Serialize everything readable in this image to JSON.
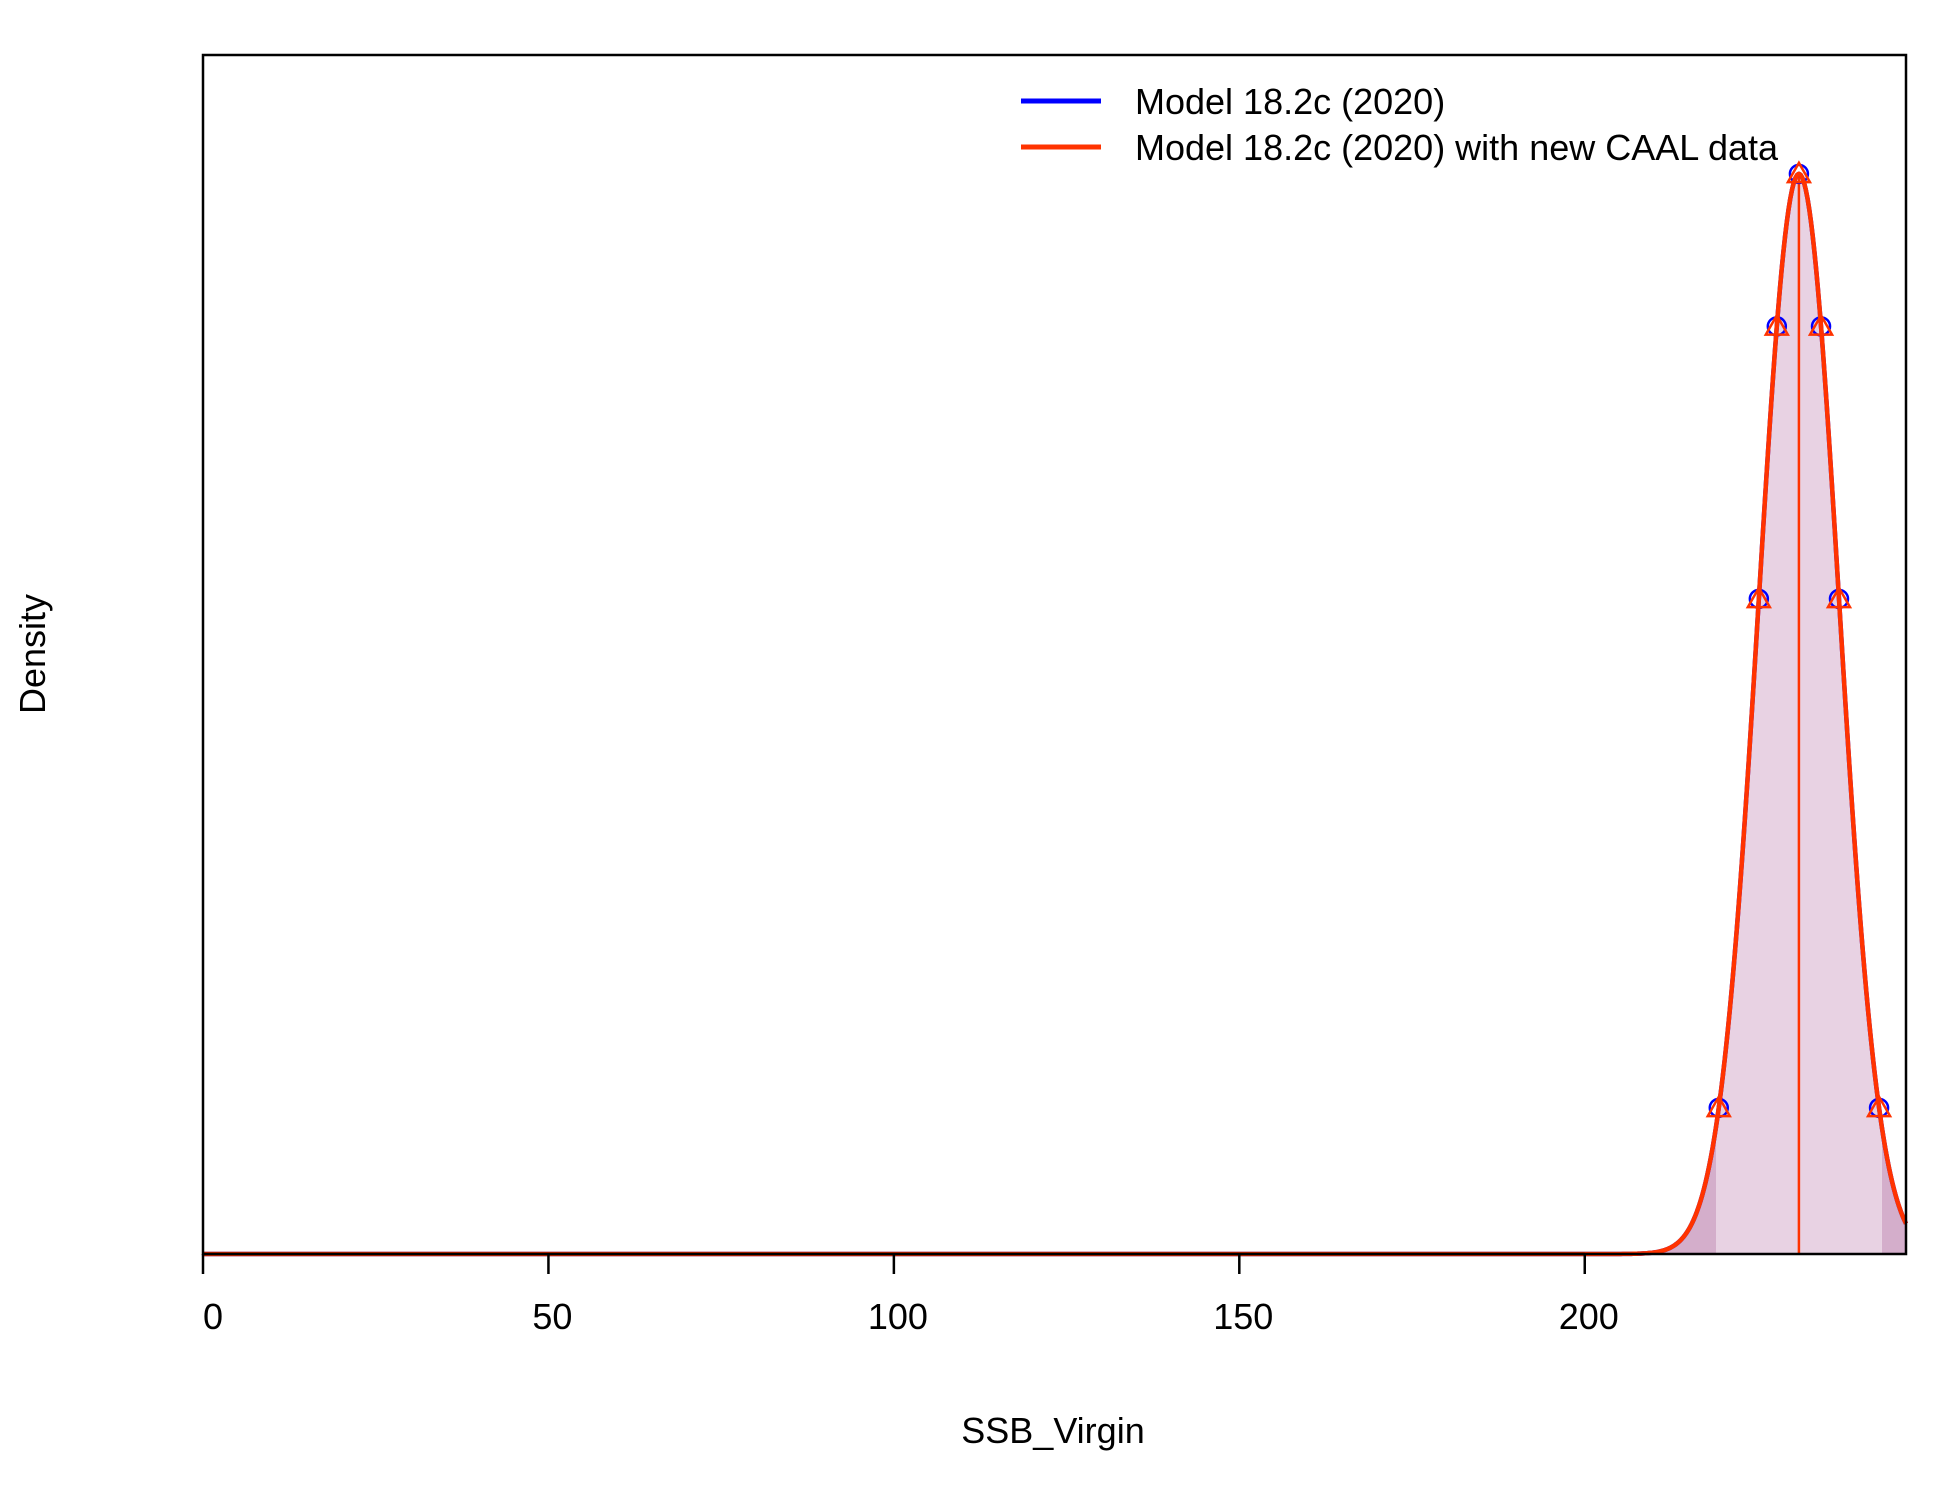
{
  "chart_data": {
    "type": "line",
    "title": "",
    "xlabel": "SSB_Virgin",
    "ylabel": "Density",
    "xlim": [
      0,
      246.5
    ],
    "ylim": [
      0,
      1.11
    ],
    "x_ticks": [
      0,
      50,
      100,
      150,
      200
    ],
    "x_tick_labels": [
      "0",
      "50",
      "100",
      "150",
      "200"
    ],
    "y_tick_labels_shown": false,
    "grid": false,
    "legend_position": "top-right",
    "series": [
      {
        "name": "Model 18.2c (2020)",
        "color": "#0000ff",
        "marker": "circle",
        "mean": 231.0,
        "sd": 5.8,
        "marker_x": [
          219.4,
          225.2,
          227.8,
          231.0,
          234.2,
          236.8,
          242.6
        ]
      },
      {
        "name": "Model 18.2c (2020) with new CAAL data",
        "color": "#ff3300",
        "marker": "triangle",
        "mean": 231.0,
        "sd": 5.8,
        "marker_x": [
          219.4,
          225.2,
          227.8,
          231.0,
          234.2,
          236.8,
          242.6
        ]
      }
    ],
    "shading": {
      "fill_color": "#e8d2e3",
      "tail_color": "#d4aecb",
      "interval_95": [
        219.0,
        243.0
      ]
    },
    "median_line_x": 231.0
  }
}
